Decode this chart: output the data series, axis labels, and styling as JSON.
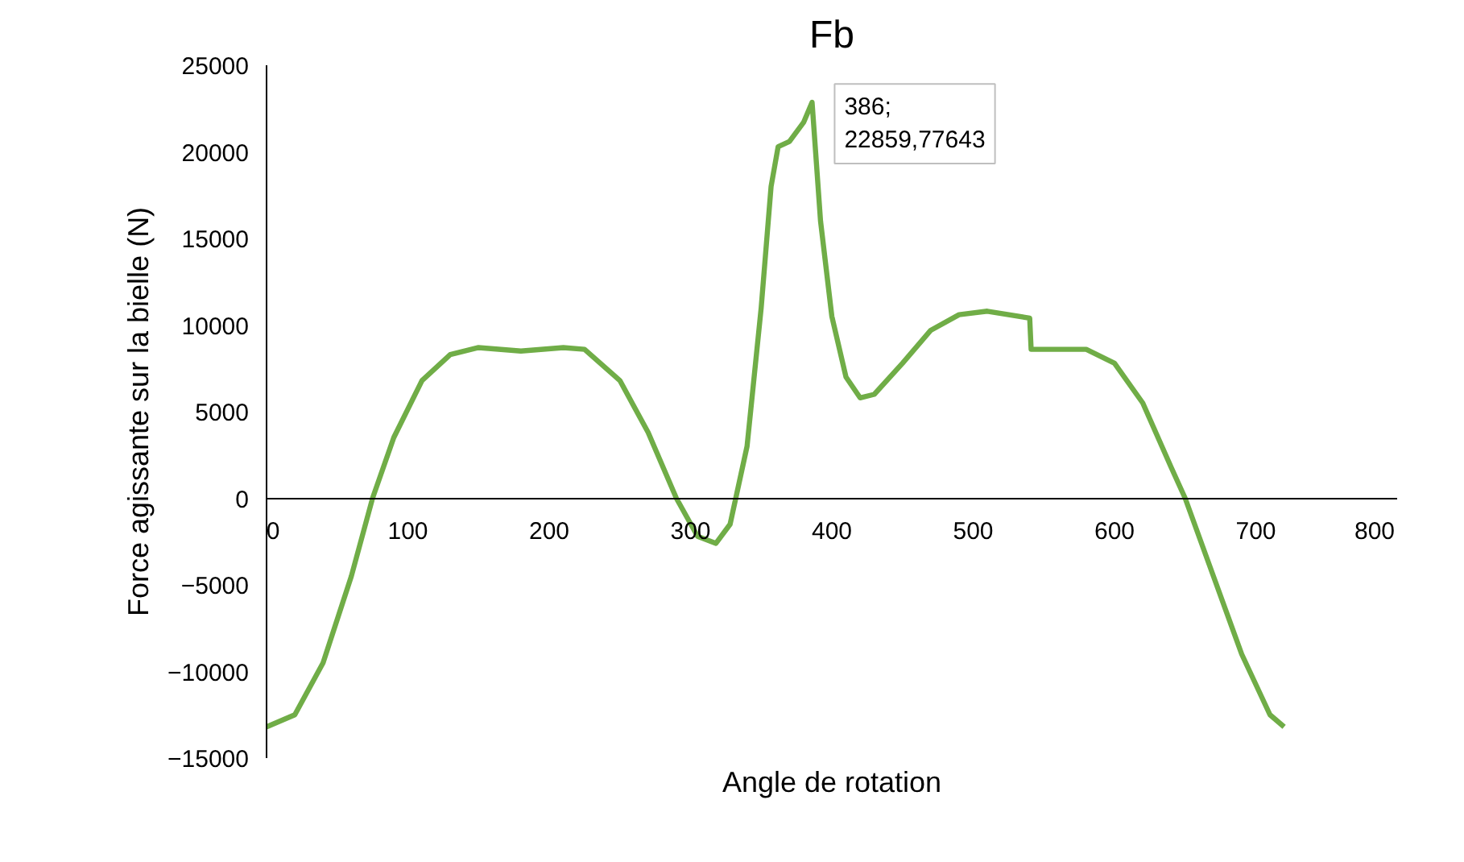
{
  "chart_data": {
    "type": "line",
    "title": "Fb",
    "xlabel": "Angle de rotation",
    "ylabel": "Force agissante sur la bielle (N)",
    "x": [
      0,
      20,
      40,
      60,
      75,
      90,
      110,
      130,
      150,
      180,
      210,
      225,
      250,
      270,
      290,
      305,
      318,
      328,
      340,
      350,
      357,
      362,
      370,
      380,
      386,
      392,
      400,
      410,
      420,
      430,
      450,
      470,
      490,
      510,
      540,
      541,
      560,
      580,
      600,
      620,
      640,
      650,
      670,
      690,
      710,
      720
    ],
    "series": [
      {
        "color": "#70ad47",
        "values": [
          -13200,
          -12500,
          -9500,
          -4500,
          0,
          3500,
          6800,
          8300,
          8700,
          8500,
          8700,
          8600,
          6800,
          3800,
          0,
          -2200,
          -2600,
          -1500,
          3000,
          11000,
          18000,
          20300,
          20600,
          21700,
          22859.77643,
          16000,
          10500,
          7000,
          5800,
          6000,
          7800,
          9700,
          10600,
          10800,
          10400,
          8600,
          8600,
          8600,
          7800,
          5500,
          1800,
          0,
          -4500,
          -9000,
          -12500,
          -13200
        ]
      }
    ],
    "xlim": [
      0,
      800
    ],
    "ylim": [
      -15000,
      25000
    ],
    "xticks": [
      0,
      100,
      200,
      300,
      400,
      500,
      600,
      700,
      800
    ],
    "yticks": [
      -15000,
      -10000,
      -5000,
      0,
      5000,
      10000,
      15000,
      20000,
      25000
    ],
    "grid": false,
    "marker": "none",
    "line_style": "solid",
    "annotations": [
      {
        "text": "386;\n22859,77643",
        "x": 386,
        "y": 22859.77643
      }
    ]
  }
}
